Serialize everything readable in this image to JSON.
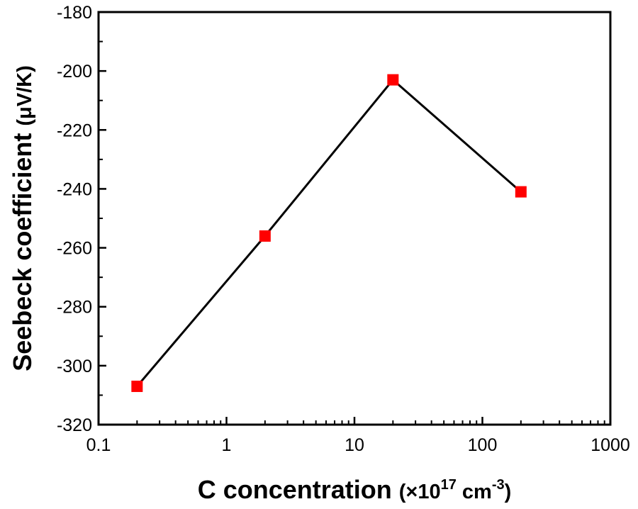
{
  "chart_data": {
    "type": "line",
    "title": "",
    "xlabel": "C concentration (×10¹⁷ cm⁻³)",
    "xlabel_parts": {
      "main": "C concentration ",
      "open": "(",
      "mult": "×10",
      "sup1": "17",
      "unit": " cm",
      "sup2": "-3",
      "close": ")"
    },
    "ylabel": "Seebeck coefficient (μV/K)",
    "ylabel_parts": {
      "main": "Seebeck coefficient ",
      "unit": "(μV/K)"
    },
    "x_scale": "log",
    "xlim": [
      0.1,
      1000
    ],
    "ylim": [
      -320,
      -180
    ],
    "x_ticks": [
      0.1,
      1,
      10,
      100,
      1000
    ],
    "x_tick_labels": [
      "0.1",
      "1",
      "10",
      "100",
      "1000"
    ],
    "y_ticks": [
      -320,
      -300,
      -280,
      -260,
      -240,
      -220,
      -200,
      -180
    ],
    "y_tick_labels": [
      "-320",
      "-300",
      "-280",
      "-260",
      "-240",
      "-220",
      "-200",
      "-180"
    ],
    "grid": false,
    "series": [
      {
        "x": [
          0.2,
          2,
          20,
          200
        ],
        "y": [
          -307,
          -256,
          -203,
          -241
        ],
        "line_color": "#000000",
        "marker": "square",
        "marker_color": "#ff0000"
      }
    ]
  }
}
